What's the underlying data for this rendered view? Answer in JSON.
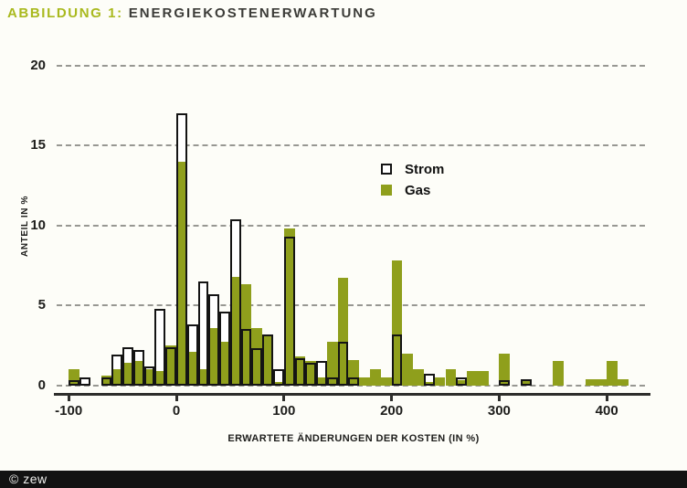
{
  "header": {
    "label": "ABBILDUNG 1:",
    "title": "ENERGIEKOSTENERWARTUNG"
  },
  "footer": {
    "copyright": "© zew"
  },
  "colors": {
    "gas_green": "#8f9f1c",
    "title_green": "#a9b91e",
    "strom_fill": "#ffffff",
    "bar_outline": "#141414",
    "grid": "#979792",
    "axis": "#2e2e2c",
    "text": "#1d1d1b",
    "footer_bg": "#121212"
  },
  "chart_data": {
    "type": "bar",
    "subtype": "overlaid histogram",
    "title": "ENERGIEKOSTENERWARTUNG",
    "xlabel": "ERWARTETE ÄNDERUNGEN DER KOSTEN (IN %)",
    "ylabel": "ANTEIL IN %",
    "xlim": [
      -110,
      440
    ],
    "ylim": [
      0,
      20
    ],
    "xticks": [
      -100,
      0,
      100,
      200,
      300,
      400
    ],
    "yticks": [
      0,
      5,
      10,
      15,
      20
    ],
    "grid": "horizontal dashed",
    "legend_position": "upper center-right",
    "bin_width": 10,
    "series": [
      {
        "name": "Strom",
        "color": "#ffffff",
        "outline": "#141414"
      },
      {
        "name": "Gas",
        "color": "#8f9f1c"
      }
    ],
    "bins": [
      {
        "x": -100,
        "strom": 0.3,
        "gas": 1.0
      },
      {
        "x": -90,
        "strom": 0.5,
        "gas": 0
      },
      {
        "x": -70,
        "strom": 0.5,
        "gas": 0.6
      },
      {
        "x": -60,
        "strom": 1.9,
        "gas": 1.0
      },
      {
        "x": -50,
        "strom": 2.4,
        "gas": 1.4
      },
      {
        "x": -40,
        "strom": 2.2,
        "gas": 1.5
      },
      {
        "x": -30,
        "strom": 1.2,
        "gas": 1.0
      },
      {
        "x": -20,
        "strom": 4.8,
        "gas": 0.9
      },
      {
        "x": -10,
        "strom": 2.4,
        "gas": 2.5
      },
      {
        "x": 0,
        "strom": 17.0,
        "gas": 14.0
      },
      {
        "x": 10,
        "strom": 3.8,
        "gas": 2.1
      },
      {
        "x": 20,
        "strom": 6.5,
        "gas": 1.0
      },
      {
        "x": 30,
        "strom": 5.7,
        "gas": 3.6
      },
      {
        "x": 40,
        "strom": 4.6,
        "gas": 2.7
      },
      {
        "x": 50,
        "strom": 10.4,
        "gas": 6.8
      },
      {
        "x": 60,
        "strom": 3.5,
        "gas": 6.3
      },
      {
        "x": 70,
        "strom": 2.3,
        "gas": 3.6
      },
      {
        "x": 80,
        "strom": 3.2,
        "gas": 3.1
      },
      {
        "x": 90,
        "strom": 1.0,
        "gas": 0.2
      },
      {
        "x": 100,
        "strom": 9.3,
        "gas": 9.8
      },
      {
        "x": 110,
        "strom": 1.7,
        "gas": 1.8
      },
      {
        "x": 120,
        "strom": 1.4,
        "gas": 1.5
      },
      {
        "x": 130,
        "strom": 1.5,
        "gas": 0.5
      },
      {
        "x": 140,
        "strom": 0.5,
        "gas": 2.7
      },
      {
        "x": 150,
        "strom": 2.7,
        "gas": 6.7
      },
      {
        "x": 160,
        "strom": 0.5,
        "gas": 1.6
      },
      {
        "x": 170,
        "strom": 0,
        "gas": 0.5
      },
      {
        "x": 180,
        "strom": 0,
        "gas": 1.0
      },
      {
        "x": 190,
        "strom": 0,
        "gas": 0.5
      },
      {
        "x": 200,
        "strom": 3.2,
        "gas": 7.8
      },
      {
        "x": 210,
        "strom": 0,
        "gas": 2.0
      },
      {
        "x": 220,
        "strom": 0,
        "gas": 1.0
      },
      {
        "x": 230,
        "strom": 0.7,
        "gas": 0.2
      },
      {
        "x": 240,
        "strom": 0,
        "gas": 0.5
      },
      {
        "x": 250,
        "strom": 0,
        "gas": 1.0
      },
      {
        "x": 260,
        "strom": 0.5,
        "gas": 0.3
      },
      {
        "x": 270,
        "strom": 0,
        "gas": 0.9
      },
      {
        "x": 280,
        "strom": 0,
        "gas": 0.9
      },
      {
        "x": 300,
        "strom": 0.3,
        "gas": 2.0
      },
      {
        "x": 320,
        "strom": 0.4,
        "gas": 0.4
      },
      {
        "x": 350,
        "strom": 0,
        "gas": 1.5
      },
      {
        "x": 380,
        "strom": 0,
        "gas": 0.4
      },
      {
        "x": 390,
        "strom": 0,
        "gas": 0.4
      },
      {
        "x": 400,
        "strom": 0,
        "gas": 1.5
      },
      {
        "x": 410,
        "strom": 0,
        "gas": 0.4
      }
    ]
  }
}
